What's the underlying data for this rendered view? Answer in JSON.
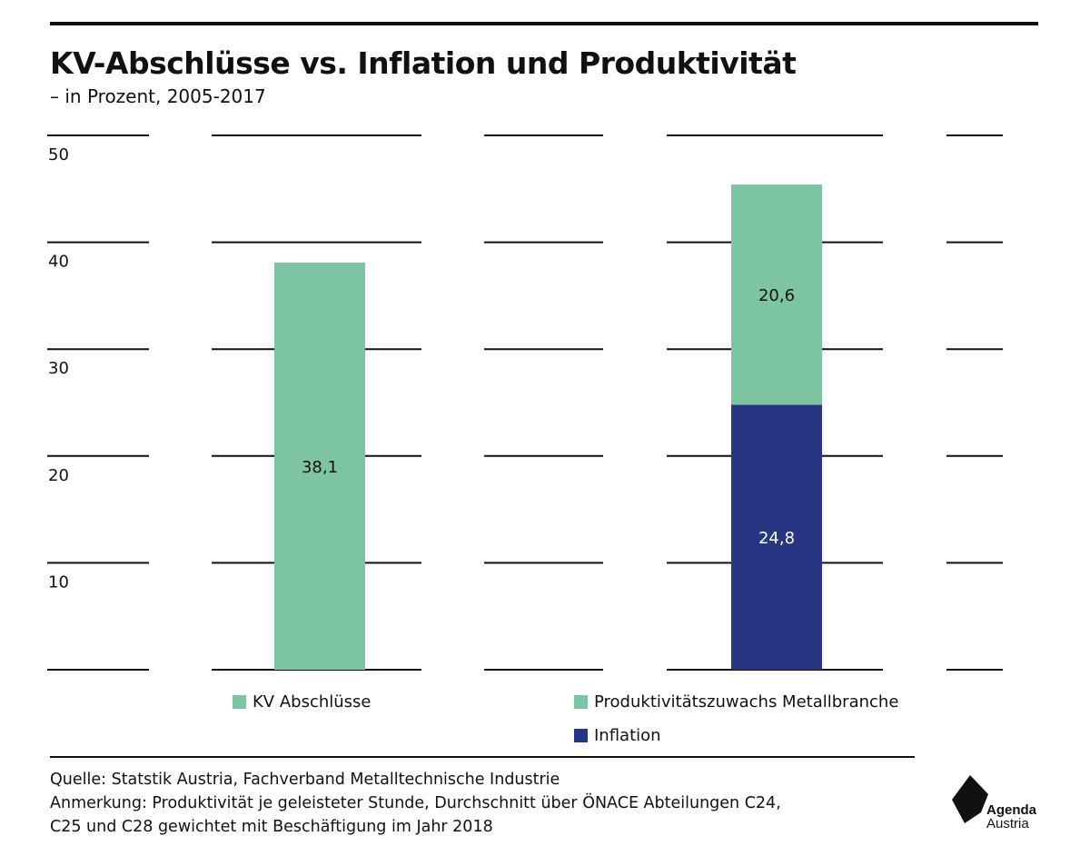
{
  "header": {
    "title": "KV-Abschlüsse vs. Inflation und Produktivität",
    "subtitle": "– in Prozent, 2005-2017"
  },
  "colors": {
    "green": "#7dc4a2",
    "navy": "#283582",
    "grid": "#111111"
  },
  "chart_data": {
    "type": "bar",
    "stacked": true,
    "ylim": [
      0,
      50
    ],
    "yticks": [
      10,
      20,
      30,
      40,
      50
    ],
    "grid": true,
    "bars": [
      {
        "segments": [
          {
            "series": "KV Abschlüsse",
            "value": 38.1,
            "label": "38,1",
            "color": "#7dc4a2"
          }
        ]
      },
      {
        "segments": [
          {
            "series": "Inflation",
            "value": 24.8,
            "label": "24,8",
            "color": "#283582"
          },
          {
            "series": "Produktivitätszuwachs Metallbranche",
            "value": 20.6,
            "label": "20,6",
            "color": "#7dc4a2"
          }
        ]
      }
    ]
  },
  "legend": {
    "kv": "KV Abschlüsse",
    "produktivitaet": "Produktivitätszuwachs Metallbranche",
    "inflation": "Inflation"
  },
  "footer": {
    "source": "Quelle: Statstik Austria, Fachverband Metalltechnische Industrie",
    "note_line1": "Anmerkung: Produktivität je geleisteter Stunde, Durchschnitt über ÖNACE Abteilungen C24,",
    "note_line2": "C25 und C28 gewichtet mit Beschäftigung im Jahr 2018"
  },
  "logo": {
    "line1": "Agenda",
    "line2": "Austria"
  }
}
